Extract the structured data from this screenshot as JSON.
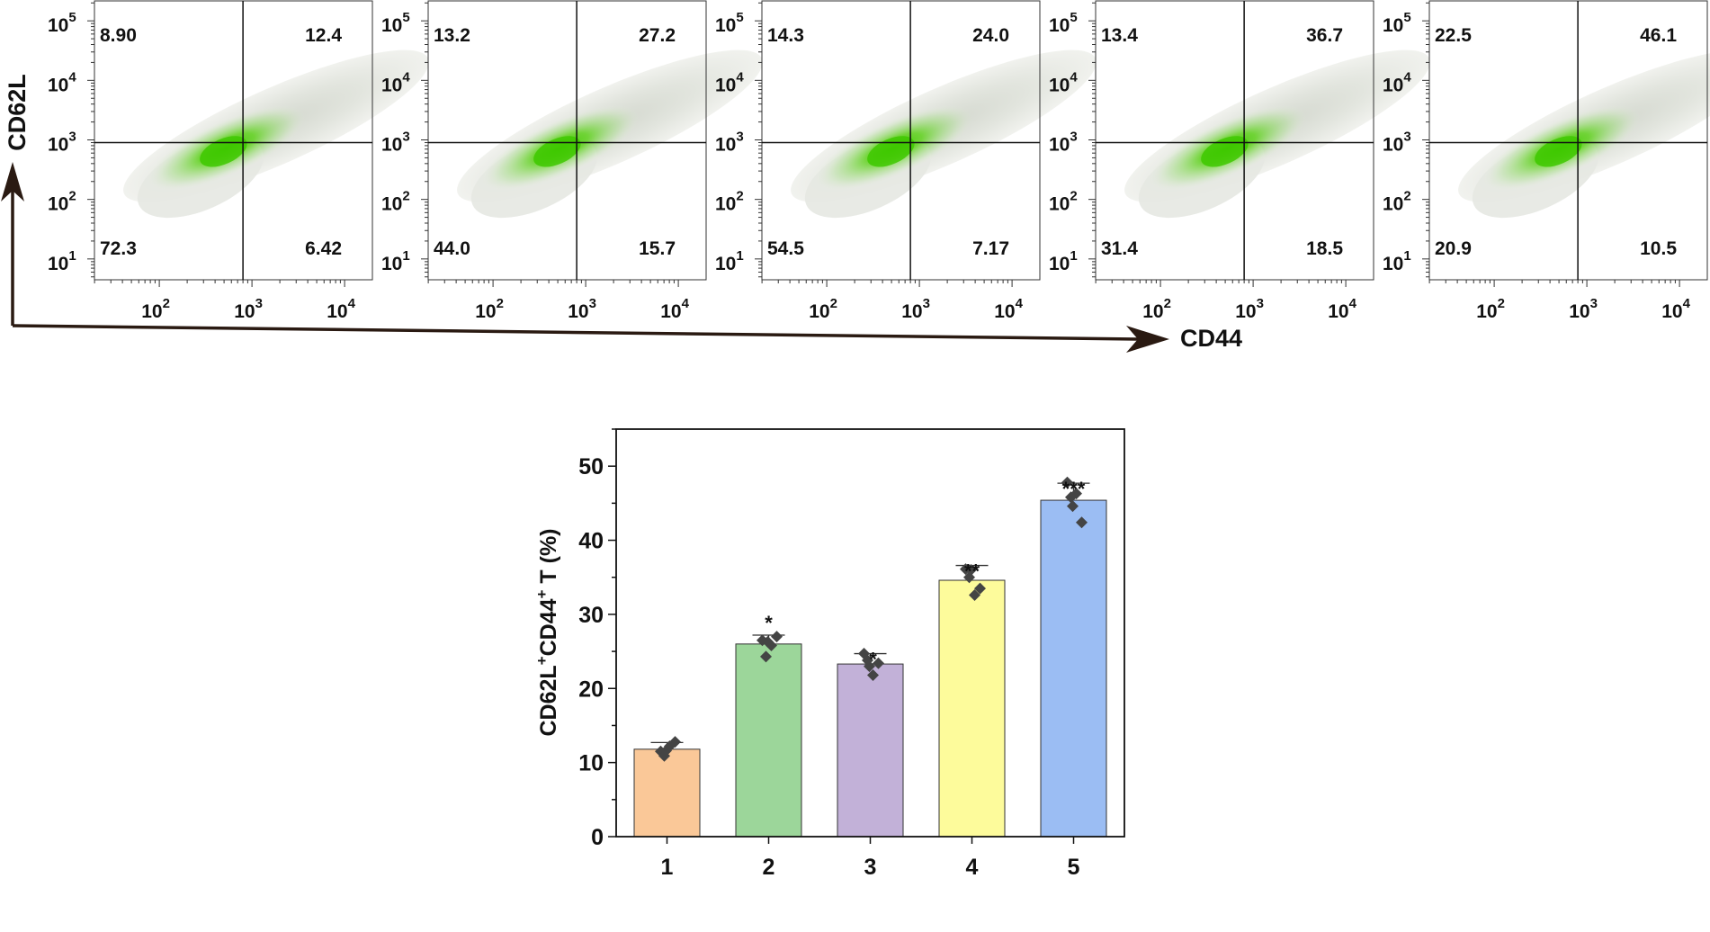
{
  "chart_data": [
    {
      "type": "scatter",
      "panel": "flow-cytometry",
      "x_label": "CD44",
      "y_label": "CD62L",
      "x_ticks": [
        {
          "base": "10",
          "exp": "2",
          "value": 100
        },
        {
          "base": "10",
          "exp": "3",
          "value": 1000
        },
        {
          "base": "10",
          "exp": "4",
          "value": 10000
        }
      ],
      "y_ticks": [
        {
          "base": "10",
          "exp": "5",
          "value": 100000
        },
        {
          "base": "10",
          "exp": "4",
          "value": 10000
        },
        {
          "base": "10",
          "exp": "3",
          "value": 1000
        },
        {
          "base": "10",
          "exp": "2",
          "value": 100
        },
        {
          "base": "10",
          "exp": "1",
          "value": 10
        }
      ],
      "x_range_log10": [
        1.3,
        4.3
      ],
      "y_range_log10": [
        0.65,
        5.35
      ],
      "gate": {
        "x": 800,
        "y": 900
      },
      "density_color": "#3ec800",
      "samples": [
        {
          "name": "1",
          "quadrants": {
            "top_left": "8.90",
            "top_right": "12.4",
            "bottom_left": "72.3",
            "bottom_right": "6.42"
          }
        },
        {
          "name": "2",
          "quadrants": {
            "top_left": "13.2",
            "top_right": "27.2",
            "bottom_left": "44.0",
            "bottom_right": "15.7"
          }
        },
        {
          "name": "3",
          "quadrants": {
            "top_left": "14.3",
            "top_right": "24.0",
            "bottom_left": "54.5",
            "bottom_right": "7.17"
          }
        },
        {
          "name": "4",
          "quadrants": {
            "top_left": "13.4",
            "top_right": "36.7",
            "bottom_left": "31.4",
            "bottom_right": "18.5"
          }
        },
        {
          "name": "5",
          "quadrants": {
            "top_left": "22.5",
            "top_right": "46.1",
            "bottom_left": "20.9",
            "bottom_right": "10.5"
          }
        }
      ]
    },
    {
      "type": "bar",
      "panel": "bar-chart",
      "categories": [
        "1",
        "2",
        "3",
        "4",
        "5"
      ],
      "values": [
        11.8,
        26.0,
        23.3,
        34.6,
        45.4
      ],
      "errors": [
        0.9,
        1.2,
        1.4,
        2.0,
        2.3
      ],
      "points": [
        [
          11.5,
          10.9,
          12.2,
          12.8,
          11.6
        ],
        [
          26.5,
          24.3,
          25.8,
          27.0,
          26.3
        ],
        [
          24.7,
          23.8,
          21.8,
          23.4,
          23.0
        ],
        [
          36.1,
          35.0,
          32.6,
          33.5,
          36.0
        ],
        [
          47.8,
          45.8,
          46.3,
          42.4,
          44.6
        ]
      ],
      "colors": [
        "#fac898",
        "#9cd69a",
        "#c2b1d8",
        "#fdfb9b",
        "#9bbdf3"
      ],
      "significance": [
        "",
        "*",
        "*",
        "**",
        "***"
      ],
      "ylabel": {
        "main": "CD62L",
        "sup1": "+",
        "mid": "CD44",
        "sup2": "+",
        "tail": " T (%)"
      },
      "xlabel": "",
      "ylim": [
        0,
        55
      ],
      "y_ticks": [
        0,
        10,
        20,
        30,
        40,
        50
      ]
    }
  ]
}
